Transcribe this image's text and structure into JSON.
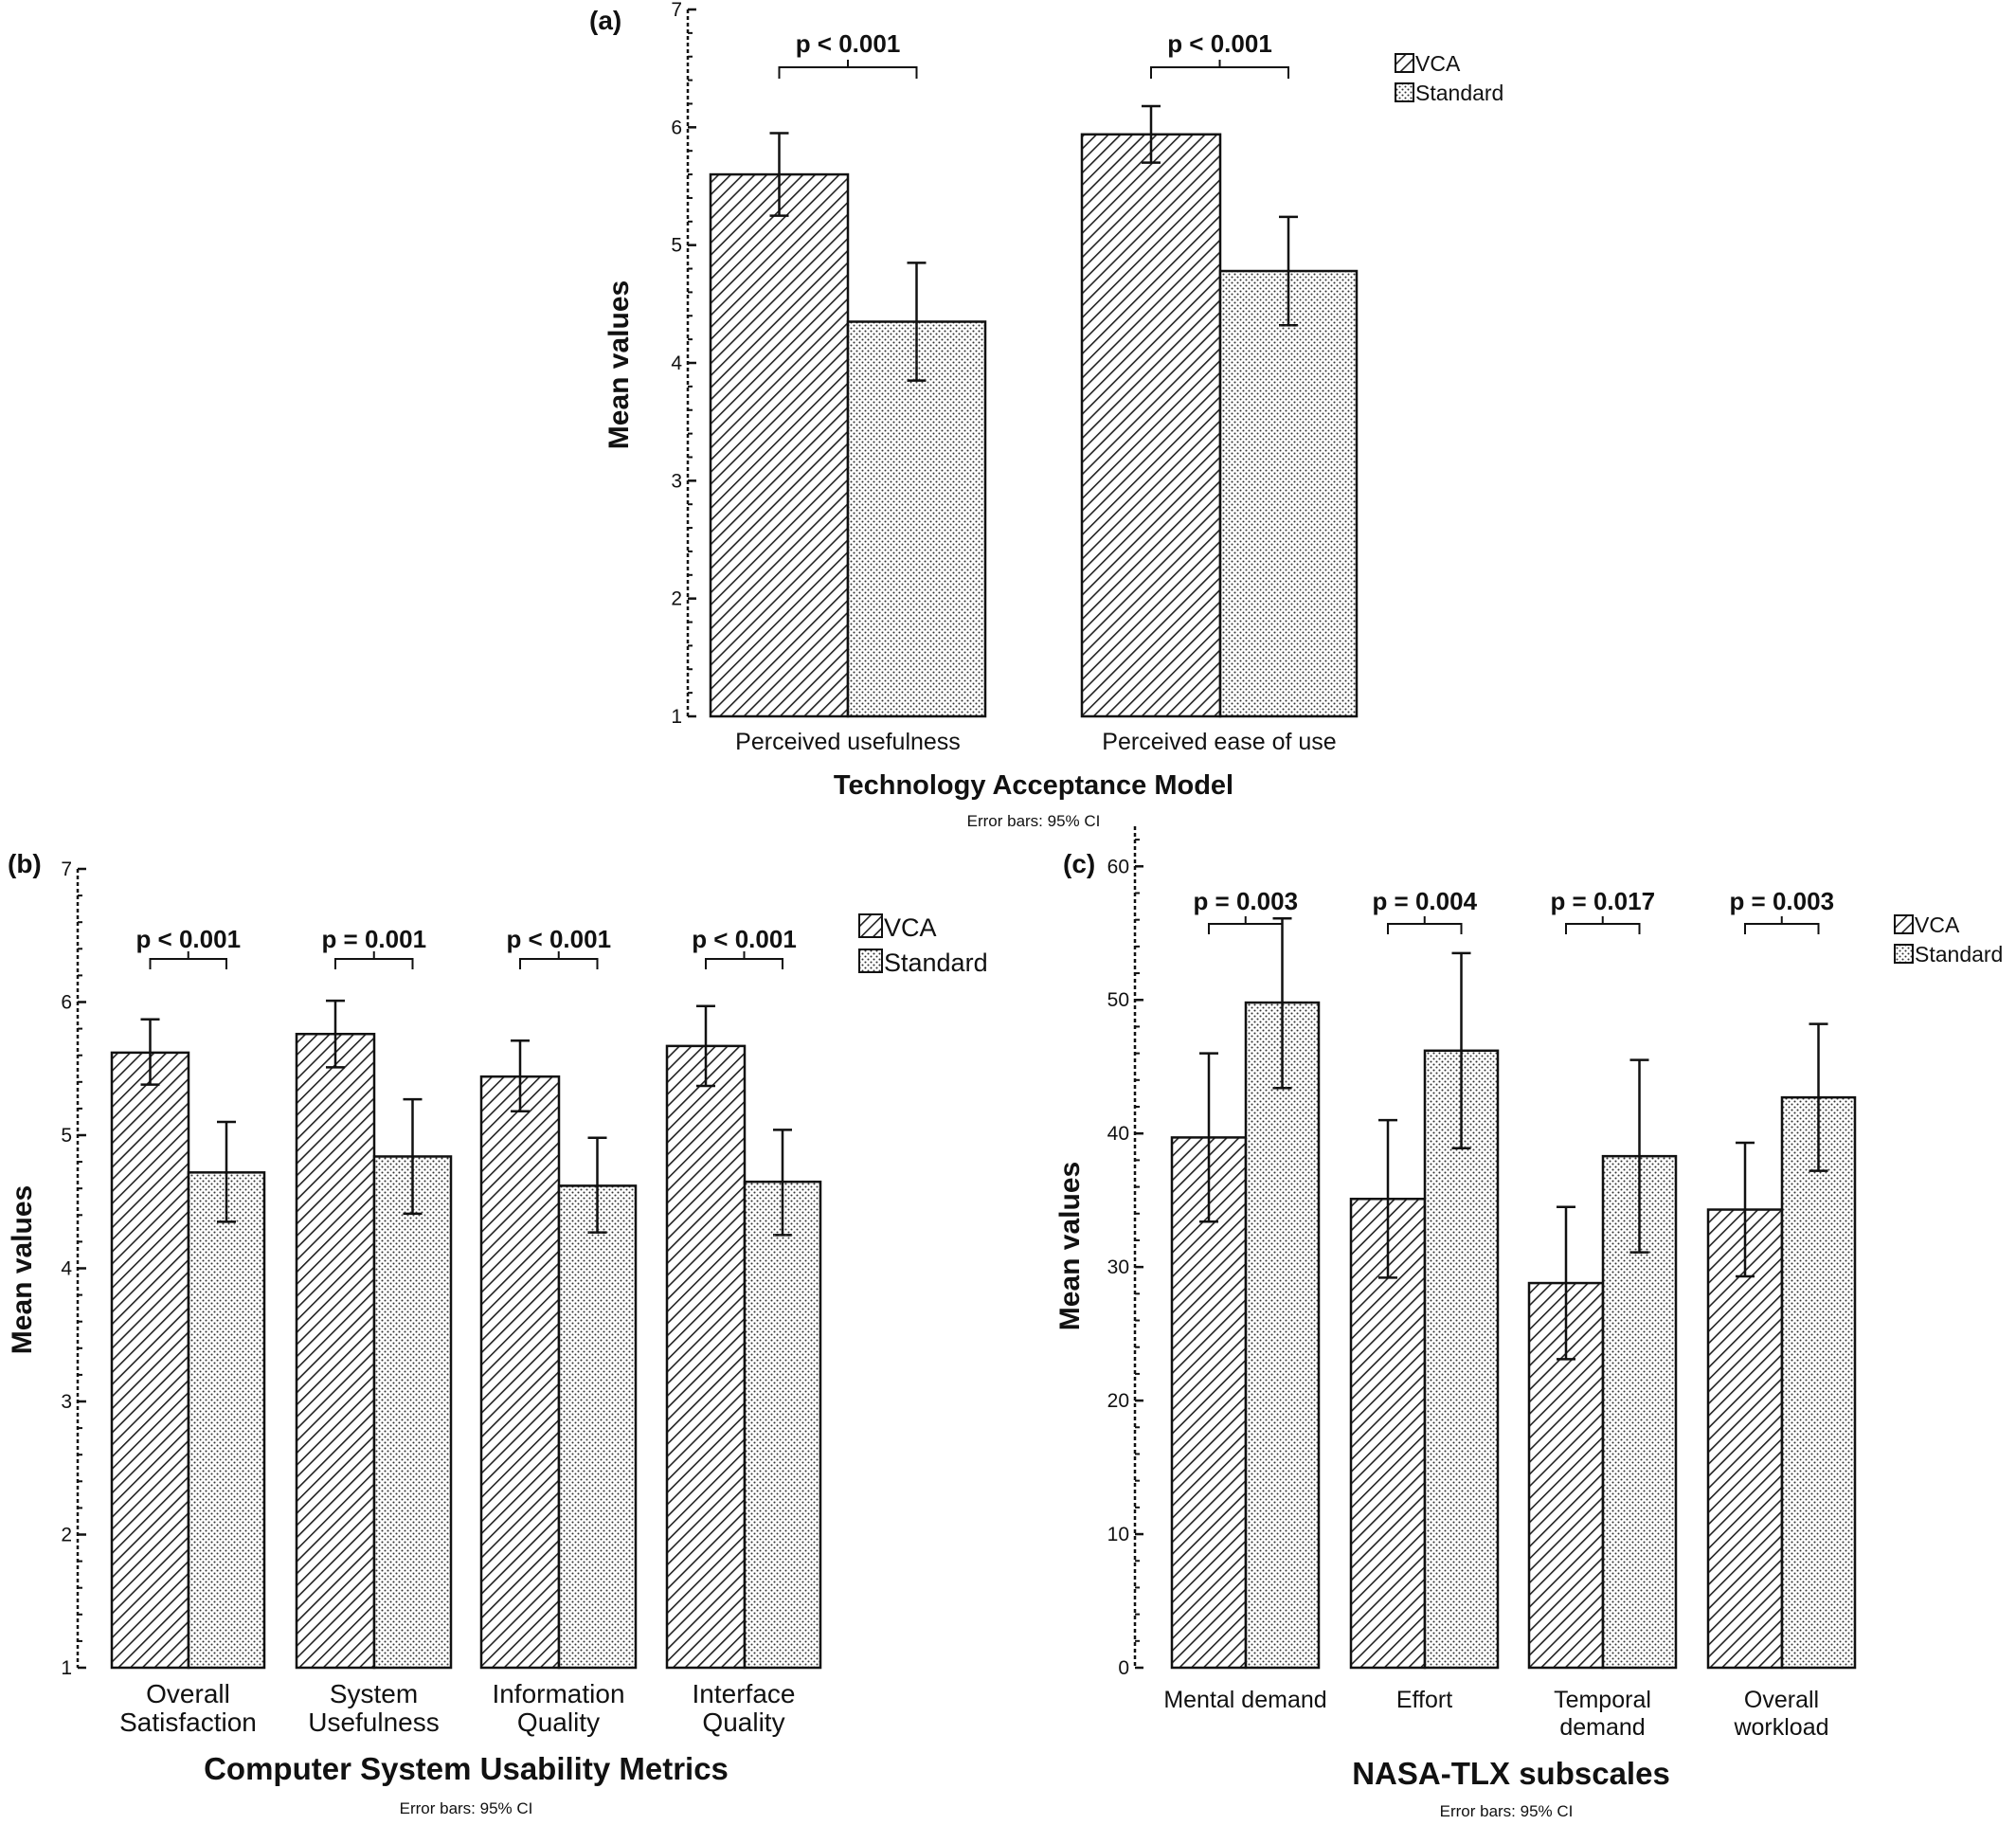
{
  "chart_data": [
    {
      "panel": "(a)",
      "type": "bar",
      "categories": [
        "Perceived usefulness",
        "Perceived ease of use"
      ],
      "series": [
        {
          "name": "VCA",
          "values": [
            5.6,
            5.94
          ],
          "ci_low": [
            5.25,
            5.7
          ],
          "ci_high": [
            5.95,
            6.18
          ]
        },
        {
          "name": "Standard",
          "values": [
            4.35,
            4.78
          ],
          "ci_low": [
            3.85,
            4.32
          ],
          "ci_high": [
            4.85,
            5.24
          ]
        }
      ],
      "ylim": [
        1,
        7
      ],
      "yticks": [
        1,
        2,
        3,
        4,
        5,
        6,
        7
      ],
      "ylabel": "Mean values",
      "xlabel": "Technology Acceptance Model",
      "note": "Error bars: 95% CI",
      "annotations": [
        "p < 0.001",
        "p < 0.001"
      ],
      "legend": "top-right"
    },
    {
      "panel": "(b)",
      "type": "bar",
      "categories": [
        [
          "Overall",
          "Satisfaction"
        ],
        [
          "System",
          "Usefulness"
        ],
        [
          "Information",
          "Quality"
        ],
        [
          "Interface",
          "Quality"
        ]
      ],
      "series": [
        {
          "name": "VCA",
          "values": [
            5.62,
            5.76,
            5.44,
            5.67
          ],
          "ci_low": [
            5.38,
            5.51,
            5.18,
            5.37
          ],
          "ci_high": [
            5.87,
            6.01,
            5.71,
            5.97
          ]
        },
        {
          "name": "Standard",
          "values": [
            4.72,
            4.84,
            4.62,
            4.65
          ],
          "ci_low": [
            4.35,
            4.41,
            4.27,
            4.25
          ],
          "ci_high": [
            5.1,
            5.27,
            4.98,
            5.04
          ]
        }
      ],
      "ylim": [
        1,
        7
      ],
      "yticks": [
        1,
        2,
        3,
        4,
        5,
        6,
        7
      ],
      "ylabel": "Mean values",
      "xlabel": "Computer System Usability Metrics",
      "note": "Error bars: 95% CI",
      "annotations": [
        "p < 0.001",
        "p = 0.001",
        "p < 0.001",
        "p < 0.001"
      ],
      "legend": "top-right"
    },
    {
      "panel": "(c)",
      "type": "bar",
      "categories": [
        [
          "Mental demand"
        ],
        [
          "Effort"
        ],
        [
          "Temporal",
          "demand"
        ],
        [
          "Overall",
          "workload"
        ]
      ],
      "series": [
        {
          "name": "VCA",
          "values": [
            39.7,
            35.1,
            28.8,
            34.3
          ],
          "ci_low": [
            33.4,
            29.2,
            23.1,
            29.3
          ],
          "ci_high": [
            46.0,
            41.0,
            34.5,
            39.3
          ]
        },
        {
          "name": "Standard",
          "values": [
            49.8,
            46.2,
            38.3,
            42.7
          ],
          "ci_low": [
            43.4,
            38.9,
            31.1,
            37.2
          ],
          "ci_high": [
            56.1,
            53.5,
            45.5,
            48.2
          ]
        }
      ],
      "ylim": [
        0,
        63
      ],
      "yticks": [
        0,
        10,
        20,
        30,
        40,
        50,
        60
      ],
      "ylabel": "Mean values",
      "xlabel": "NASA-TLX subscales",
      "note": "Error bars: 95% CI",
      "annotations": [
        "p = 0.003",
        "p = 0.004",
        "p = 0.017",
        "p = 0.003"
      ],
      "legend": "top-right"
    }
  ]
}
